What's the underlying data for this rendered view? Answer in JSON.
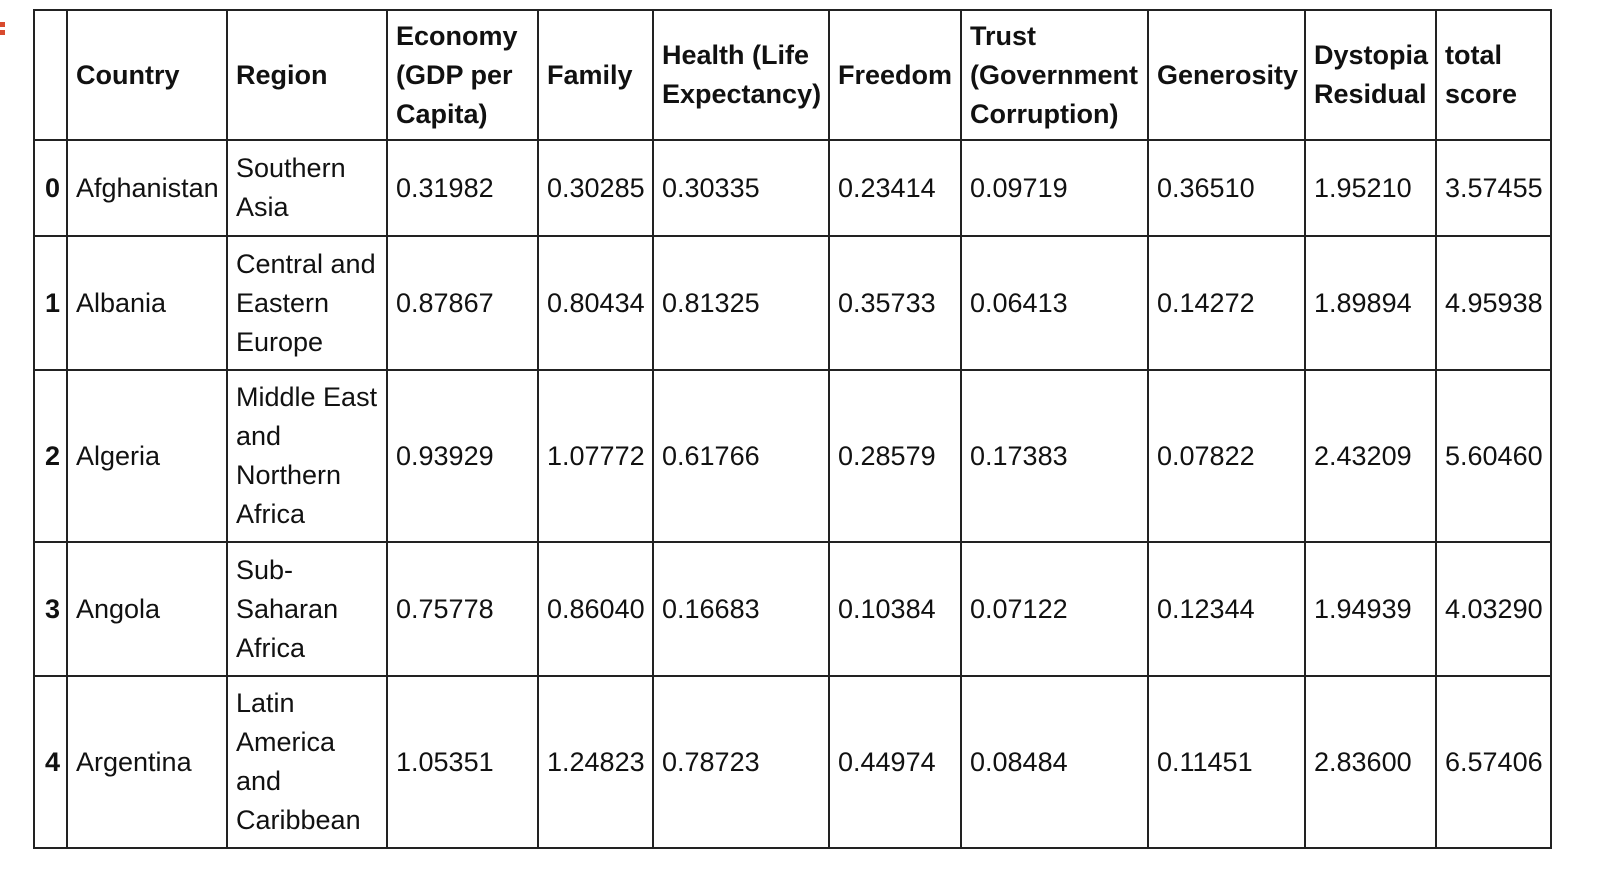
{
  "columns": [
    "",
    "Country",
    "Region",
    "Economy (GDP per Capita)",
    "Family",
    "Health (Life Expectancy)",
    "Freedom",
    "Trust (Government Corruption)",
    "Generosity",
    "Dystopia Residual",
    "total score"
  ],
  "rows": [
    {
      "index": "0",
      "country": "Afghanistan",
      "region": "Southern Asia",
      "economy": "0.31982",
      "family": "0.30285",
      "health": "0.30335",
      "freedom": "0.23414",
      "trust": "0.09719",
      "generosity": "0.36510",
      "dystopia": "1.95210",
      "total": "3.57455"
    },
    {
      "index": "1",
      "country": "Albania",
      "region": "Central and Eastern Europe",
      "economy": "0.87867",
      "family": "0.80434",
      "health": "0.81325",
      "freedom": "0.35733",
      "trust": "0.06413",
      "generosity": "0.14272",
      "dystopia": "1.89894",
      "total": "4.95938"
    },
    {
      "index": "2",
      "country": "Algeria",
      "region": "Middle East and Northern Africa",
      "economy": "0.93929",
      "family": "1.07772",
      "health": "0.61766",
      "freedom": "0.28579",
      "trust": "0.17383",
      "generosity": "0.07822",
      "dystopia": "2.43209",
      "total": "5.60460"
    },
    {
      "index": "3",
      "country": "Angola",
      "region": "Sub-Saharan Africa",
      "economy": "0.75778",
      "family": "0.86040",
      "health": "0.16683",
      "freedom": "0.10384",
      "trust": "0.07122",
      "generosity": "0.12344",
      "dystopia": "1.94939",
      "total": "4.03290"
    },
    {
      "index": "4",
      "country": "Argentina",
      "region": "Latin America and Caribbean",
      "economy": "1.05351",
      "family": "1.24823",
      "health": "0.78723",
      "freedom": "0.44974",
      "trust": "0.08484",
      "generosity": "0.11451",
      "dystopia": "2.83600",
      "total": "6.57406"
    }
  ]
}
